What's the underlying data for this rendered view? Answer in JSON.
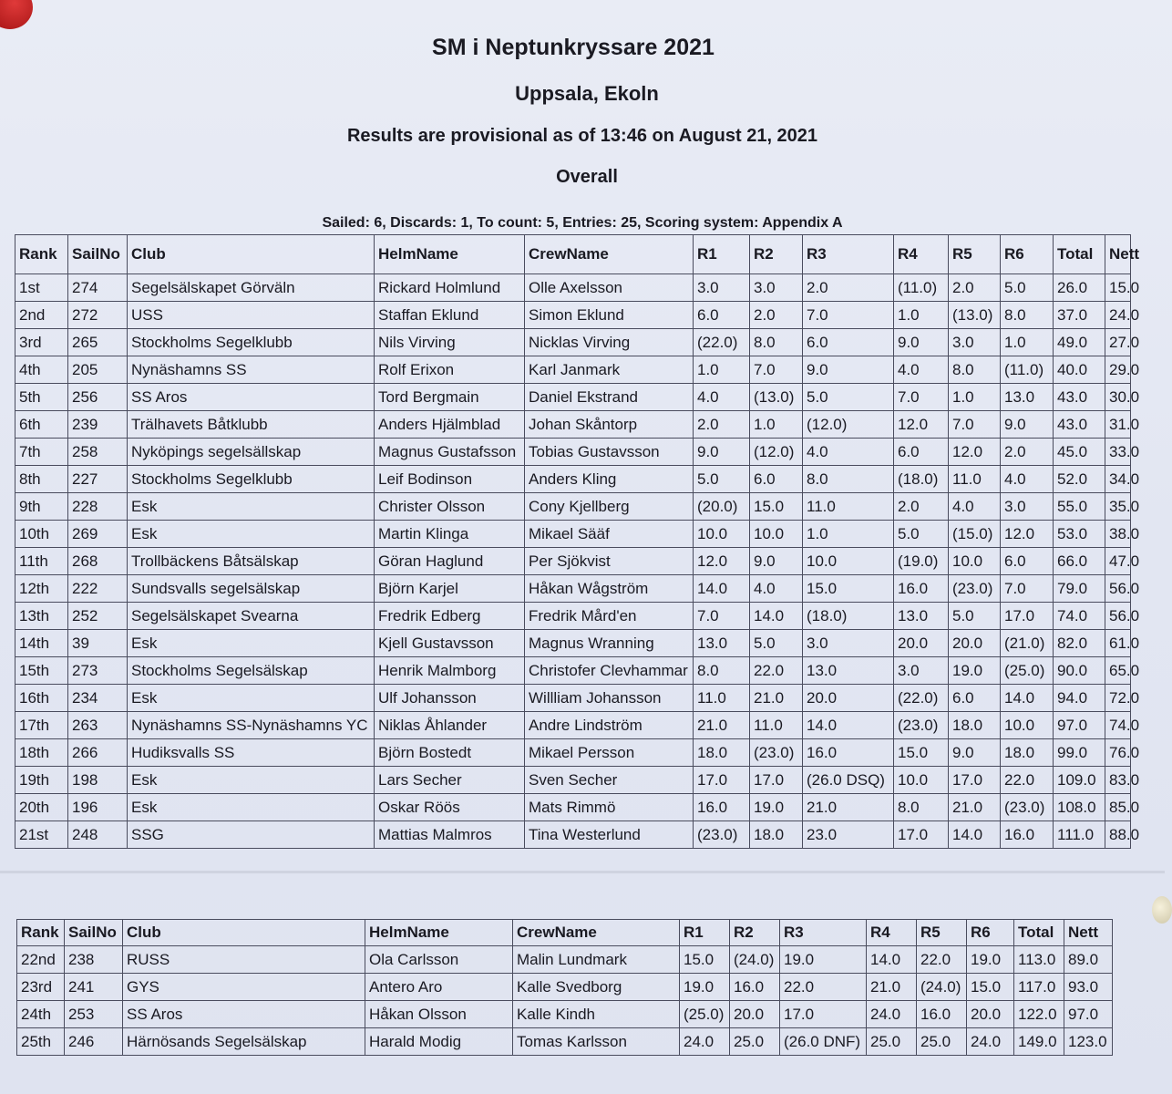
{
  "header": {
    "title": "SM i Neptunkryssare 2021",
    "venue": "Uppsala, Ekoln",
    "status": "Results are provisional as of 13:46 on August 21, 2021",
    "section": "Overall",
    "summary": "Sailed: 6, Discards: 1, To count: 5, Entries: 25, Scoring system: Appendix A"
  },
  "columns": [
    "Rank",
    "SailNo",
    "Club",
    "HelmName",
    "CrewName",
    "R1",
    "R2",
    "R3",
    "R4",
    "R5",
    "R6",
    "Total",
    "Nett"
  ],
  "table1": [
    [
      "1st",
      "274",
      "Segelsälskapet Görväln",
      "Rickard Holmlund",
      "Olle Axelsson",
      "3.0",
      "3.0",
      "2.0",
      "(11.0)",
      "2.0",
      "5.0",
      "26.0",
      "15.0"
    ],
    [
      "2nd",
      "272",
      "USS",
      "Staffan Eklund",
      "Simon Eklund",
      "6.0",
      "2.0",
      "7.0",
      "1.0",
      "(13.0)",
      "8.0",
      "37.0",
      "24.0"
    ],
    [
      "3rd",
      "265",
      "Stockholms Segelklubb",
      "Nils Virving",
      "Nicklas Virving",
      "(22.0)",
      "8.0",
      "6.0",
      "9.0",
      "3.0",
      "1.0",
      "49.0",
      "27.0"
    ],
    [
      "4th",
      "205",
      "Nynäshamns SS",
      "Rolf Erixon",
      "Karl Janmark",
      "1.0",
      "7.0",
      "9.0",
      "4.0",
      "8.0",
      "(11.0)",
      "40.0",
      "29.0"
    ],
    [
      "5th",
      "256",
      "SS Aros",
      "Tord Bergmain",
      "Daniel Ekstrand",
      "4.0",
      "(13.0)",
      "5.0",
      "7.0",
      "1.0",
      "13.0",
      "43.0",
      "30.0"
    ],
    [
      "6th",
      "239",
      "Trälhavets Båtklubb",
      "Anders Hjälmblad",
      "Johan Skåntorp",
      "2.0",
      "1.0",
      "(12.0)",
      "12.0",
      "7.0",
      "9.0",
      "43.0",
      "31.0"
    ],
    [
      "7th",
      "258",
      "Nyköpings segelsällskap",
      "Magnus Gustafsson",
      "Tobias Gustavsson",
      "9.0",
      "(12.0)",
      "4.0",
      "6.0",
      "12.0",
      "2.0",
      "45.0",
      "33.0"
    ],
    [
      "8th",
      "227",
      "Stockholms Segelklubb",
      "Leif Bodinson",
      "Anders Kling",
      "5.0",
      "6.0",
      "8.0",
      "(18.0)",
      "11.0",
      "4.0",
      "52.0",
      "34.0"
    ],
    [
      "9th",
      "228",
      "Esk",
      "Christer Olsson",
      "Cony Kjellberg",
      "(20.0)",
      "15.0",
      "11.0",
      "2.0",
      "4.0",
      "3.0",
      "55.0",
      "35.0"
    ],
    [
      "10th",
      "269",
      "Esk",
      "Martin Klinga",
      "Mikael Sääf",
      "10.0",
      "10.0",
      "1.0",
      "5.0",
      "(15.0)",
      "12.0",
      "53.0",
      "38.0"
    ],
    [
      "11th",
      "268",
      "Trollbäckens Båtsälskap",
      "Göran Haglund",
      "Per Sjökvist",
      "12.0",
      "9.0",
      "10.0",
      "(19.0)",
      "10.0",
      "6.0",
      "66.0",
      "47.0"
    ],
    [
      "12th",
      "222",
      "Sundsvalls segelsälskap",
      "Björn Karjel",
      "Håkan Wågström",
      "14.0",
      "4.0",
      "15.0",
      "16.0",
      "(23.0)",
      "7.0",
      "79.0",
      "56.0"
    ],
    [
      "13th",
      "252",
      "Segelsälskapet Svearna",
      "Fredrik Edberg",
      "Fredrik Mård'en",
      "7.0",
      "14.0",
      "(18.0)",
      "13.0",
      "5.0",
      "17.0",
      "74.0",
      "56.0"
    ],
    [
      "14th",
      "39",
      "Esk",
      "Kjell Gustavsson",
      "Magnus Wranning",
      "13.0",
      "5.0",
      "3.0",
      "20.0",
      "20.0",
      "(21.0)",
      "82.0",
      "61.0"
    ],
    [
      "15th",
      "273",
      "Stockholms Segelsälskap",
      "Henrik Malmborg",
      "Christofer Clevhammar",
      "8.0",
      "22.0",
      "13.0",
      "3.0",
      "19.0",
      "(25.0)",
      "90.0",
      "65.0"
    ],
    [
      "16th",
      "234",
      "Esk",
      "Ulf Johansson",
      "Willliam Johansson",
      "11.0",
      "21.0",
      "20.0",
      "(22.0)",
      "6.0",
      "14.0",
      "94.0",
      "72.0"
    ],
    [
      "17th",
      "263",
      "Nynäshamns SS-Nynäshamns YC",
      "Niklas Åhlander",
      "Andre Lindström",
      "21.0",
      "11.0",
      "14.0",
      "(23.0)",
      "18.0",
      "10.0",
      "97.0",
      "74.0"
    ],
    [
      "18th",
      "266",
      "Hudiksvalls SS",
      "Björn Bostedt",
      "Mikael Persson",
      "18.0",
      "(23.0)",
      "16.0",
      "15.0",
      "9.0",
      "18.0",
      "99.0",
      "76.0"
    ],
    [
      "19th",
      "198",
      "Esk",
      "Lars Secher",
      "Sven Secher",
      "17.0",
      "17.0",
      "(26.0 DSQ)",
      "10.0",
      "17.0",
      "22.0",
      "109.0",
      "83.0"
    ],
    [
      "20th",
      "196",
      "Esk",
      "Oskar Röös",
      "Mats Rimmö",
      "16.0",
      "19.0",
      "21.0",
      "8.0",
      "21.0",
      "(23.0)",
      "108.0",
      "85.0"
    ],
    [
      "21st",
      "248",
      "SSG",
      "Mattias Malmros",
      "Tina Westerlund",
      "(23.0)",
      "18.0",
      "23.0",
      "17.0",
      "14.0",
      "16.0",
      "111.0",
      "88.0"
    ]
  ],
  "table2": [
    [
      "22nd",
      "238",
      "RUSS",
      "Ola Carlsson",
      "Malin Lundmark",
      "15.0",
      "(24.0)",
      "19.0",
      "14.0",
      "22.0",
      "19.0",
      "113.0",
      "89.0"
    ],
    [
      "23rd",
      "241",
      "GYS",
      "Antero Aro",
      "Kalle Svedborg",
      "19.0",
      "16.0",
      "22.0",
      "21.0",
      "(24.0)",
      "15.0",
      "117.0",
      "93.0"
    ],
    [
      "24th",
      "253",
      "SS Aros",
      "Håkan Olsson",
      "Kalle Kindh",
      "(25.0)",
      "20.0",
      "17.0",
      "24.0",
      "16.0",
      "20.0",
      "122.0",
      "97.0"
    ],
    [
      "25th",
      "246",
      "Härnösands Segelsälskap",
      "Harald Modig",
      "Tomas Karlsson",
      "24.0",
      "25.0",
      "(26.0 DNF)",
      "25.0",
      "25.0",
      "24.0",
      "149.0",
      "123.0"
    ]
  ]
}
